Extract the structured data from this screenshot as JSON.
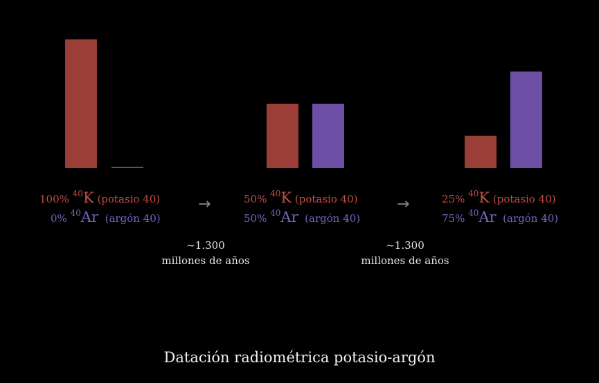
{
  "chart_data": {
    "type": "bar",
    "title": "Datación radiométrica potasio-argón",
    "groups": [
      {
        "values": [
          100,
          0
        ],
        "k_pct": "100%",
        "ar_pct": "0%"
      },
      {
        "values": [
          50,
          50
        ],
        "k_pct": "50%",
        "ar_pct": "50%"
      },
      {
        "values": [
          25,
          75
        ],
        "k_pct": "25%",
        "ar_pct": "75%"
      }
    ],
    "series": [
      {
        "isotope_mass": "40",
        "symbol": "K",
        "name": "(potasio 40)",
        "color": "#9b3e38"
      },
      {
        "isotope_mass": "40",
        "symbol": "Ar",
        "name": "(argón 40)",
        "color": "#6e4fa8"
      }
    ],
    "transitions": [
      {
        "arrow": "→",
        "line1": "~1.300",
        "line2": "millones de años"
      },
      {
        "arrow": "→",
        "line1": "~1.300",
        "line2": "millones de años"
      }
    ],
    "ylim": [
      0,
      100
    ]
  }
}
